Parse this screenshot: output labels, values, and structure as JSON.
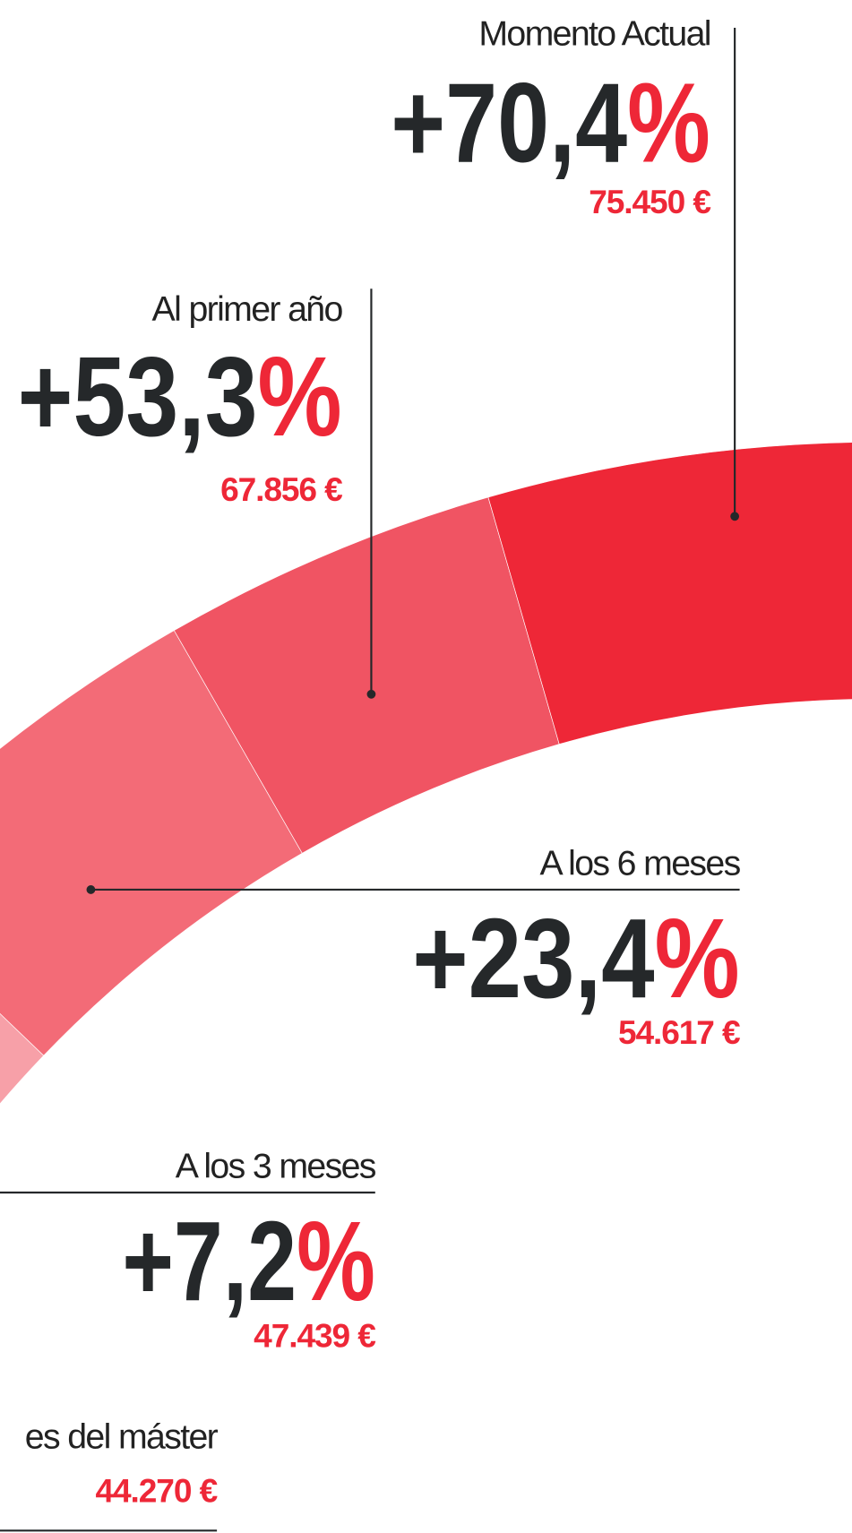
{
  "milestones": [
    {
      "label": "Momento Actual",
      "change": "+70,4",
      "change_unit": "%",
      "amount": "75.450 €"
    },
    {
      "label": "Al primer año",
      "change": "+53,3",
      "change_unit": "%",
      "amount": "67.856 €"
    },
    {
      "label": "A los 6 meses",
      "change": "+23,4",
      "change_unit": "%",
      "amount": "54.617 €"
    },
    {
      "label": "A los 3 meses",
      "change": "+7,2",
      "change_unit": "%",
      "amount": "47.439 €"
    },
    {
      "label": "es del máster",
      "amount": "44.270 €"
    }
  ]
}
